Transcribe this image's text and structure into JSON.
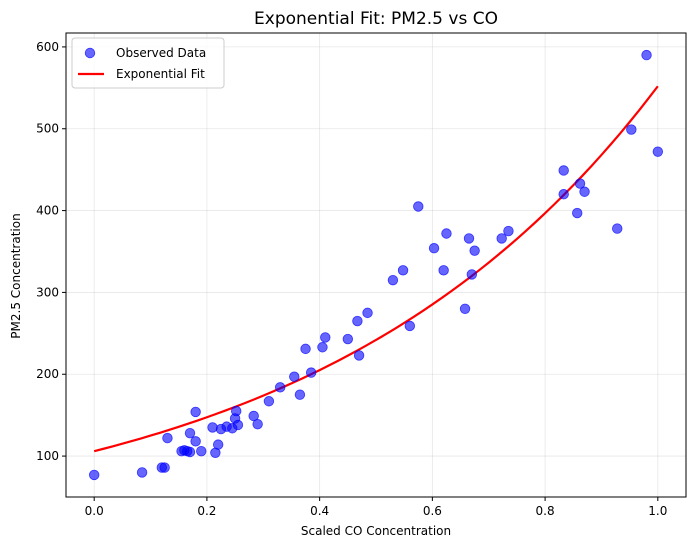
{
  "chart_data": {
    "type": "scatter",
    "title": "Exponential Fit: PM2.5 vs CO",
    "xlabel": "Scaled CO Concentration",
    "ylabel": "PM2.5 Concentration",
    "xlim": [
      -0.05,
      1.05
    ],
    "ylim": [
      50,
      617
    ],
    "xticks": [
      0.0,
      0.2,
      0.4,
      0.6,
      0.8,
      1.0
    ],
    "xtick_labels": [
      "0.0",
      "0.2",
      "0.4",
      "0.6",
      "0.8",
      "1.0"
    ],
    "yticks": [
      100,
      200,
      300,
      400,
      500,
      600
    ],
    "ytick_labels": [
      "100",
      "200",
      "300",
      "400",
      "500",
      "600"
    ],
    "grid": true,
    "legend_position": "top-left",
    "series": [
      {
        "name": "Observed Data",
        "kind": "scatter",
        "color": "#0000ff",
        "points": [
          [
            0.0,
            77
          ],
          [
            0.085,
            80
          ],
          [
            0.12,
            86
          ],
          [
            0.125,
            86
          ],
          [
            0.13,
            122
          ],
          [
            0.155,
            106
          ],
          [
            0.16,
            107
          ],
          [
            0.165,
            106
          ],
          [
            0.17,
            105
          ],
          [
            0.17,
            128
          ],
          [
            0.18,
            154
          ],
          [
            0.18,
            118
          ],
          [
            0.19,
            106
          ],
          [
            0.21,
            135
          ],
          [
            0.215,
            104
          ],
          [
            0.22,
            114
          ],
          [
            0.225,
            133
          ],
          [
            0.235,
            136
          ],
          [
            0.245,
            134
          ],
          [
            0.25,
            146
          ],
          [
            0.252,
            155
          ],
          [
            0.255,
            138
          ],
          [
            0.283,
            149
          ],
          [
            0.29,
            139
          ],
          [
            0.31,
            167
          ],
          [
            0.33,
            184
          ],
          [
            0.355,
            197
          ],
          [
            0.365,
            175
          ],
          [
            0.375,
            231
          ],
          [
            0.385,
            202
          ],
          [
            0.405,
            233
          ],
          [
            0.41,
            245
          ],
          [
            0.45,
            243
          ],
          [
            0.467,
            265
          ],
          [
            0.47,
            223
          ],
          [
            0.485,
            275
          ],
          [
            0.53,
            315
          ],
          [
            0.548,
            327
          ],
          [
            0.56,
            259
          ],
          [
            0.575,
            405
          ],
          [
            0.603,
            354
          ],
          [
            0.62,
            327
          ],
          [
            0.625,
            372
          ],
          [
            0.658,
            280
          ],
          [
            0.665,
            366
          ],
          [
            0.67,
            322
          ],
          [
            0.675,
            351
          ],
          [
            0.723,
            366
          ],
          [
            0.735,
            375
          ],
          [
            0.833,
            449
          ],
          [
            0.833,
            420
          ],
          [
            0.857,
            397
          ],
          [
            0.862,
            433
          ],
          [
            0.87,
            423
          ],
          [
            0.928,
            378
          ],
          [
            0.953,
            499
          ],
          [
            0.98,
            590
          ],
          [
            1.0,
            472
          ]
        ]
      },
      {
        "name": "Exponential Fit",
        "kind": "line",
        "color": "#ff0000",
        "model": "y = a * exp(b * x)",
        "params": {
          "a": 106,
          "b": 1.65
        },
        "x_range": [
          0.0,
          1.0
        ]
      }
    ]
  }
}
